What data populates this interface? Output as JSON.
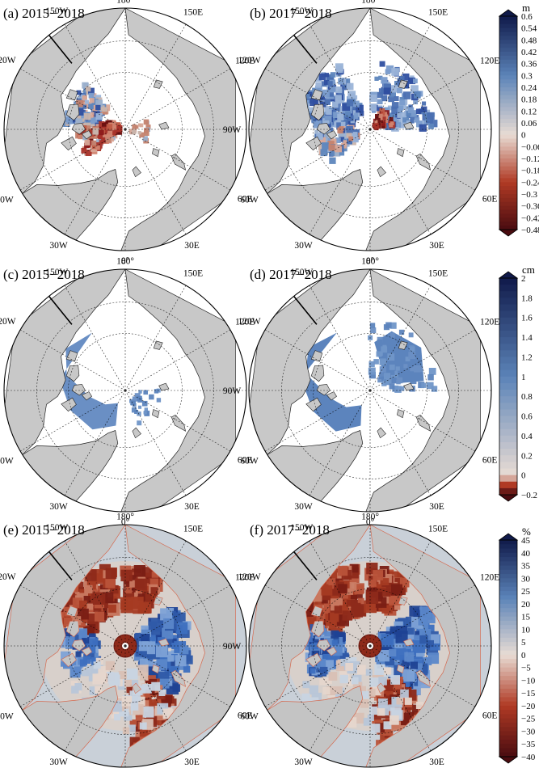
{
  "chart_data": {
    "type": "polar-map-grid",
    "panels": [
      {
        "label": "(a) 2015−2018",
        "row": 0,
        "col": 0,
        "variable": "thickness",
        "pattern": "A"
      },
      {
        "label": "(b) 2017−2018",
        "row": 0,
        "col": 1,
        "variable": "thickness",
        "pattern": "B"
      },
      {
        "label": "(c) 2015−2018",
        "row": 1,
        "col": 0,
        "variable": "snow",
        "pattern": "C"
      },
      {
        "label": "(d) 2017−2018",
        "row": 1,
        "col": 1,
        "variable": "snow",
        "pattern": "D"
      },
      {
        "label": "(e) 2015−2018",
        "row": 2,
        "col": 0,
        "variable": "concentration",
        "pattern": "E"
      },
      {
        "label": "(f) 2017−2018",
        "row": 2,
        "col": 1,
        "variable": "concentration",
        "pattern": "F"
      }
    ],
    "longitude_labels": {
      "180": "180°",
      "150E": "150E",
      "120E": "120E",
      "90E": "90E",
      "60E": "60E",
      "30E": "30E",
      "0": "0°",
      "30W": "30W",
      "60W": "60W",
      "90W": "90W",
      "120W": "120W",
      "150W": "150W"
    },
    "colorbars": [
      {
        "unit": "m",
        "range": [
          -0.48,
          0.6
        ],
        "ticks": [
          "0.6",
          "0.54",
          "0.48",
          "0.42",
          "0.36",
          "0.3",
          "0.24",
          "0.18",
          "0.12",
          "0.06",
          "0",
          "−0.06",
          "−0.12",
          "−0.18",
          "−0.24",
          "−0.3",
          "−0.36",
          "−0.42",
          "−0.48"
        ]
      },
      {
        "unit": "cm",
        "range": [
          -0.2,
          2
        ],
        "ticks": [
          "2",
          "1.8",
          "1.6",
          "1.4",
          "1.2",
          "1",
          "0.8",
          "0.6",
          "0.4",
          "0.2",
          "0",
          "−0.2"
        ]
      },
      {
        "unit": "%",
        "range": [
          -40,
          45
        ],
        "ticks": [
          "45",
          "40",
          "35",
          "30",
          "25",
          "20",
          "15",
          "10",
          "5",
          "0",
          "−5",
          "−10",
          "−15",
          "−20",
          "−25",
          "−30",
          "−35",
          "−40"
        ]
      }
    ],
    "colors": {
      "land": "#c8c8c8",
      "ocean": "#ffffff",
      "negative_deep": "#4a0c10",
      "negative": "#b03a24",
      "neutral": "#e8dcd4",
      "positive": "#5b83b8",
      "positive_deep": "#101a4a"
    }
  }
}
